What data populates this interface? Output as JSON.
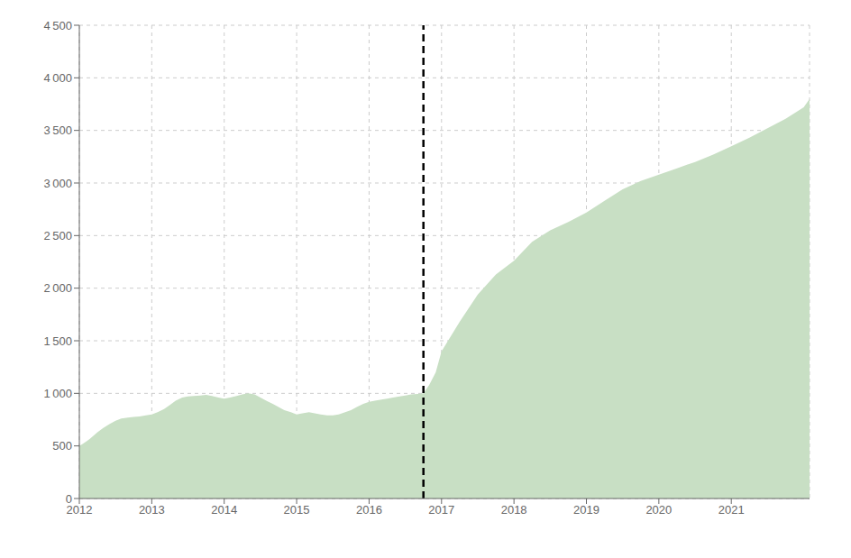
{
  "chart_data": {
    "type": "area",
    "x": [
      2012.0,
      2012.05,
      2012.1,
      2012.15,
      2012.2,
      2012.25,
      2012.33,
      2012.42,
      2012.5,
      2012.58,
      2012.67,
      2012.75,
      2012.83,
      2012.92,
      2013.0,
      2013.08,
      2013.17,
      2013.25,
      2013.33,
      2013.42,
      2013.5,
      2013.58,
      2013.67,
      2013.75,
      2013.83,
      2013.92,
      2014.0,
      2014.08,
      2014.17,
      2014.25,
      2014.33,
      2014.42,
      2014.5,
      2014.58,
      2014.67,
      2014.75,
      2014.83,
      2014.92,
      2015.0,
      2015.08,
      2015.17,
      2015.25,
      2015.33,
      2015.42,
      2015.5,
      2015.58,
      2015.67,
      2015.75,
      2015.83,
      2015.92,
      2016.0,
      2016.08,
      2016.17,
      2016.25,
      2016.33,
      2016.42,
      2016.5,
      2016.58,
      2016.67,
      2016.75,
      2016.83,
      2016.92,
      2017.0,
      2017.25,
      2017.5,
      2017.75,
      2018.0,
      2018.25,
      2018.5,
      2018.75,
      2019.0,
      2019.25,
      2019.5,
      2019.75,
      2020.0,
      2020.25,
      2020.5,
      2020.75,
      2021.0,
      2021.25,
      2021.5,
      2021.75,
      2022.0,
      2022.08
    ],
    "values": [
      500,
      520,
      545,
      570,
      600,
      630,
      670,
      710,
      740,
      760,
      770,
      775,
      780,
      790,
      800,
      820,
      850,
      890,
      930,
      960,
      970,
      975,
      980,
      985,
      975,
      960,
      950,
      960,
      975,
      990,
      1000,
      990,
      960,
      930,
      900,
      870,
      840,
      820,
      800,
      810,
      820,
      810,
      800,
      790,
      790,
      800,
      820,
      840,
      870,
      900,
      920,
      930,
      940,
      950,
      960,
      970,
      980,
      990,
      995,
      1000,
      1080,
      1200,
      1400,
      1680,
      1940,
      2130,
      2260,
      2440,
      2550,
      2630,
      2720,
      2830,
      2940,
      3020,
      3080,
      3140,
      3200,
      3270,
      3350,
      3430,
      3520,
      3610,
      3720,
      3800
    ],
    "color": "#c8dfc4",
    "xlim": [
      2012.0,
      2022.08
    ],
    "ylim": [
      0,
      4500
    ],
    "xticks": [
      2012,
      2013,
      2014,
      2015,
      2016,
      2017,
      2018,
      2019,
      2020,
      2021
    ],
    "yticks": [
      0,
      500,
      {
        "value": 1000,
        "label": "1 000"
      },
      {
        "value": 1500,
        "label": "1 500"
      },
      {
        "value": 2000,
        "label": "2 000"
      },
      {
        "value": 2500,
        "label": "2 500"
      },
      {
        "value": 3000,
        "label": "3 000"
      },
      {
        "value": 3500,
        "label": "3 500"
      },
      {
        "value": 4000,
        "label": "4 000"
      },
      {
        "value": 4500,
        "label": "4 500"
      }
    ],
    "vline": {
      "x": 2016.75,
      "color": "#000000",
      "line_style": "dashed"
    },
    "grid": true
  }
}
